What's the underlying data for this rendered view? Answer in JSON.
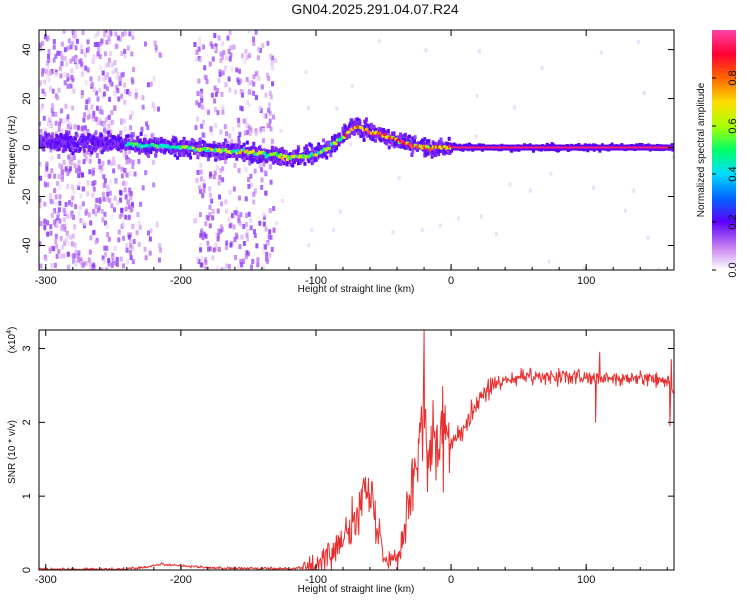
{
  "title": "GN04.2025.291.04.07.R24",
  "chart_data": [
    {
      "type": "heatmap",
      "xlabel": "Height of straight line (km)",
      "ylabel": "Frequency (Hz)",
      "xlim": [
        -305,
        165
      ],
      "ylim": [
        -50,
        48
      ],
      "x_ticks": [
        -300,
        -200,
        -100,
        0,
        100
      ],
      "y_ticks": [
        -40,
        -20,
        0,
        20,
        40
      ],
      "colorbar": {
        "label": "Normalized spectral amplitude",
        "range": [
          0,
          1
        ],
        "ticks": [
          "0.0",
          "0.2",
          "0.4",
          "0.6",
          "0.8"
        ],
        "colors": [
          "#ffffff",
          "#c47bf0",
          "#5a00ff",
          "#0066ff",
          "#00ddff",
          "#00ff66",
          "#aaff00",
          "#ffdd00",
          "#ff6600",
          "#ff0033",
          "#ff44aa"
        ]
      },
      "ridge": {
        "x": [
          -300,
          -250,
          -230,
          -200,
          -150,
          -120,
          -100,
          -85,
          -70,
          -60,
          -50,
          -40,
          -30,
          -20,
          -10,
          0,
          50,
          100,
          165
        ],
        "y": [
          2,
          2,
          1,
          0,
          -2,
          -4,
          -3,
          2,
          9,
          6,
          5,
          3,
          1,
          0,
          0,
          0,
          0,
          0,
          0
        ]
      }
    },
    {
      "type": "line",
      "xlabel": "Height of straight line (km)",
      "ylabel": "SNR (10 * v/v)",
      "multiplier": "(x10",
      "multiplier_exp": "4",
      "xlim": [
        -305,
        165
      ],
      "ylim": [
        0,
        3.25
      ],
      "x_ticks": [
        -300,
        -200,
        -100,
        0,
        100
      ],
      "y_ticks": [
        0,
        1,
        2,
        3
      ],
      "color": "#e83030",
      "series": {
        "x": [
          -305,
          -250,
          -230,
          -215,
          -200,
          -180,
          -150,
          -120,
          -100,
          -90,
          -80,
          -72,
          -65,
          -60,
          -55,
          -50,
          -45,
          -40,
          -35,
          -30,
          -25,
          -22,
          -20,
          -18,
          -15,
          -10,
          -5,
          0,
          5,
          10,
          20,
          30,
          40,
          50,
          60,
          70,
          80,
          100,
          120,
          140,
          160,
          165
        ],
        "y": [
          0.01,
          0.01,
          0.03,
          0.08,
          0.06,
          0.03,
          0.02,
          0.02,
          0.05,
          0.2,
          0.45,
          0.8,
          0.95,
          1.0,
          0.6,
          0.25,
          0.15,
          0.2,
          0.55,
          1.1,
          1.6,
          2.0,
          2.2,
          1.6,
          1.5,
          1.7,
          1.8,
          1.75,
          1.85,
          1.95,
          2.3,
          2.5,
          2.55,
          2.6,
          2.62,
          2.6,
          2.62,
          2.6,
          2.58,
          2.6,
          2.55,
          2.45
        ]
      },
      "spikes": [
        {
          "x": -20,
          "y": 3.25
        },
        {
          "x": -65,
          "y": 1.2
        },
        {
          "x": 110,
          "y": 2.95
        },
        {
          "x": 107,
          "y": 2.0
        },
        {
          "x": 162,
          "y": 1.95
        },
        {
          "x": 163,
          "y": 2.85
        }
      ]
    }
  ]
}
